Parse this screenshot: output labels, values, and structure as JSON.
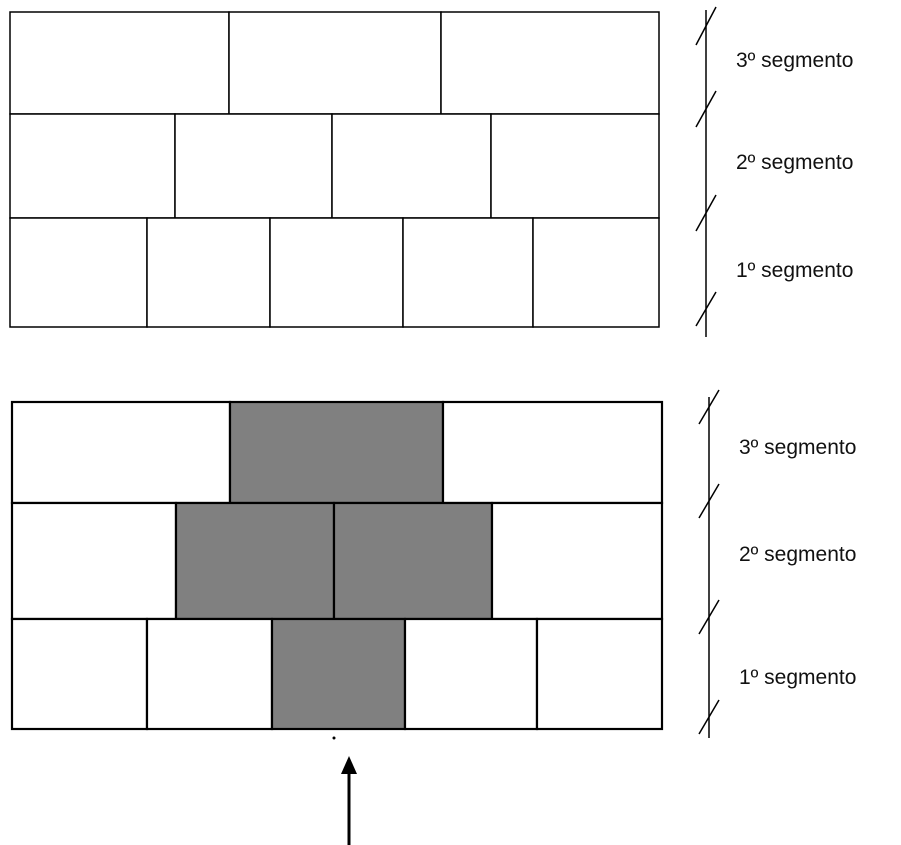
{
  "top_panel": {
    "labels": [
      "3º segmento",
      "2º segmento",
      "1º segmento"
    ],
    "rows": [
      {
        "blocks": [
          {
            "shaded": false
          },
          {
            "shaded": false
          },
          {
            "shaded": false
          }
        ]
      },
      {
        "blocks": [
          {
            "shaded": false
          },
          {
            "shaded": false
          },
          {
            "shaded": false
          },
          {
            "shaded": false
          }
        ]
      },
      {
        "blocks": [
          {
            "shaded": false
          },
          {
            "shaded": false
          },
          {
            "shaded": false
          },
          {
            "shaded": false
          },
          {
            "shaded": false
          }
        ]
      }
    ]
  },
  "bottom_panel": {
    "labels": [
      "3º segmento",
      "2º segmento",
      "1º segmento"
    ],
    "rows": [
      {
        "blocks": [
          {
            "shaded": false
          },
          {
            "shaded": true
          },
          {
            "shaded": false
          }
        ]
      },
      {
        "blocks": [
          {
            "shaded": false
          },
          {
            "shaded": true
          },
          {
            "shaded": true
          },
          {
            "shaded": false
          }
        ]
      },
      {
        "blocks": [
          {
            "shaded": false
          },
          {
            "shaded": false
          },
          {
            "shaded": true
          },
          {
            "shaded": false
          },
          {
            "shaded": false
          }
        ]
      }
    ]
  },
  "colors": {
    "stroke": "#000000",
    "shaded_fill": "#808080",
    "background": "#ffffff"
  }
}
